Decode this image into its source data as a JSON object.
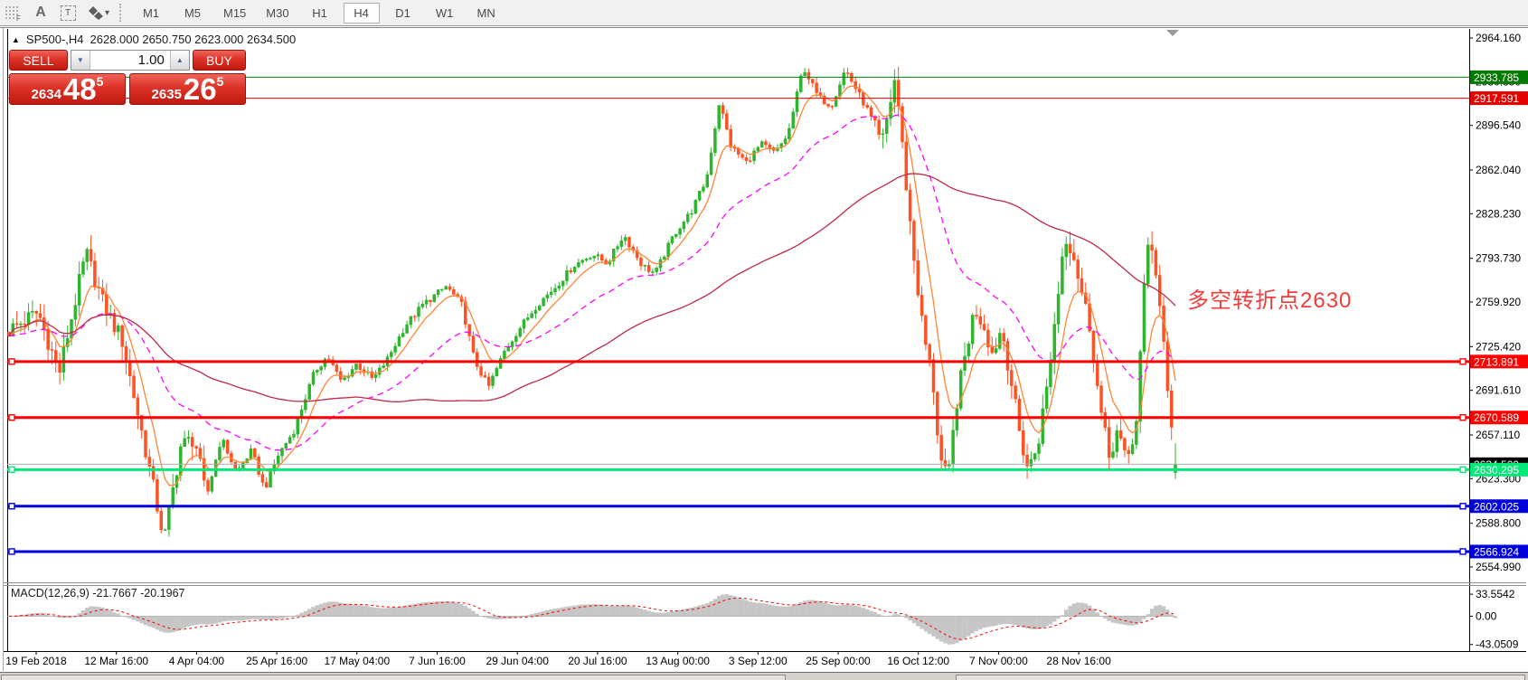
{
  "icons": {
    "collapse": "▲",
    "spin_down": "▼",
    "spin_up": "▲",
    "dropdown_caret": "▾",
    "text_label": "A",
    "text_box": "T",
    "fib_f": "F"
  },
  "toolbar": {
    "timeframes": [
      "M1",
      "M5",
      "M15",
      "M30",
      "H1",
      "H4",
      "D1",
      "W1",
      "MN"
    ],
    "active_timeframe": "H4"
  },
  "chart_header": {
    "symbol": "SP500-,H4",
    "ohlc": "2628.000 2650.750 2623.000 2634.500"
  },
  "trade_panel": {
    "sell_label": "SELL",
    "buy_label": "BUY",
    "volume": "1.00",
    "sell_price": {
      "prefix": "2634",
      "big": "48",
      "sup": "5"
    },
    "buy_price": {
      "prefix": "2635",
      "big": "26",
      "sup": "5"
    }
  },
  "annotation": {
    "text": "多空转折点2630",
    "color": "#f43b3b"
  },
  "macd_label": {
    "name": "MACD(12,26,9)",
    "values": "-21.7667 -20.1967"
  },
  "chart_data": {
    "type": "candlestick",
    "symbol": "SP500-,H4",
    "period": "H4",
    "current_bar": {
      "open": 2628.0,
      "high": 2650.75,
      "low": 2623.0,
      "close": 2634.5
    },
    "axis_range": [
      2554.99,
      2964.16
    ],
    "y_ticks": [
      2964.16,
      2930.35,
      2896.54,
      2862.04,
      2828.23,
      2793.73,
      2759.92,
      2725.42,
      2691.61,
      2657.11,
      2623.3,
      2588.8,
      2554.99
    ],
    "x_labels": [
      "19 Feb 2018",
      "12 Mar 16:00",
      "4 Apr 04:00",
      "25 Apr 16:00",
      "17 May 04:00",
      "7 Jun 16:00",
      "29 Jun 04:00",
      "20 Jul 16:00",
      "13 Aug 00:00",
      "3 Sep 12:00",
      "25 Sep 00:00",
      "16 Oct 12:00",
      "7 Nov 00:00",
      "28 Nov 16:00"
    ],
    "hlines": [
      {
        "price": 2933.785,
        "color": "#007a00",
        "width": 1,
        "handles": false
      },
      {
        "price": 2917.591,
        "color": "#e60000",
        "width": 1,
        "handles": false
      },
      {
        "price": 2713.891,
        "color": "#ff0000",
        "width": 3,
        "handles": true
      },
      {
        "price": 2670.589,
        "color": "#ff0000",
        "width": 3,
        "handles": true
      },
      {
        "price": 2602.025,
        "color": "#0000dd",
        "width": 3,
        "handles": true
      },
      {
        "price": 2566.924,
        "color": "#0000dd",
        "width": 3,
        "handles": true
      }
    ],
    "turn_line": {
      "price": 2630.295,
      "color": "#00e878",
      "width": 3
    },
    "bid_line": {
      "price": 2634.5,
      "line_color": "#ababab",
      "label_bg": "#000000"
    },
    "up_color": "#2db52d",
    "down_color": "#ff5122",
    "ma_lines": [
      {
        "name": "fast",
        "type": "ema",
        "period": 8,
        "color": "#ff8533",
        "dash": ""
      },
      {
        "name": "medium",
        "type": "ema",
        "period": 34,
        "color": "#ff00ff",
        "dash": "7 5"
      },
      {
        "name": "slow",
        "type": "sma",
        "period": 90,
        "color": "#bf2847",
        "dash": ""
      }
    ],
    "bars": 300,
    "price_path_anchors": [
      [
        0.0,
        2738
      ],
      [
        0.025,
        2752
      ],
      [
        0.043,
        2705
      ],
      [
        0.066,
        2798
      ],
      [
        0.081,
        2758
      ],
      [
        0.097,
        2730
      ],
      [
        0.116,
        2650
      ],
      [
        0.133,
        2576
      ],
      [
        0.147,
        2648
      ],
      [
        0.159,
        2655
      ],
      [
        0.169,
        2608
      ],
      [
        0.182,
        2655
      ],
      [
        0.195,
        2628
      ],
      [
        0.208,
        2645
      ],
      [
        0.219,
        2615
      ],
      [
        0.231,
        2642
      ],
      [
        0.244,
        2660
      ],
      [
        0.262,
        2706
      ],
      [
        0.273,
        2718
      ],
      [
        0.285,
        2698
      ],
      [
        0.298,
        2712
      ],
      [
        0.312,
        2700
      ],
      [
        0.324,
        2715
      ],
      [
        0.34,
        2742
      ],
      [
        0.355,
        2758
      ],
      [
        0.375,
        2772
      ],
      [
        0.388,
        2758
      ],
      [
        0.399,
        2715
      ],
      [
        0.411,
        2694
      ],
      [
        0.425,
        2722
      ],
      [
        0.438,
        2740
      ],
      [
        0.453,
        2758
      ],
      [
        0.469,
        2772
      ],
      [
        0.484,
        2788
      ],
      [
        0.5,
        2797
      ],
      [
        0.513,
        2790
      ],
      [
        0.527,
        2812
      ],
      [
        0.543,
        2788
      ],
      [
        0.554,
        2782
      ],
      [
        0.57,
        2812
      ],
      [
        0.585,
        2830
      ],
      [
        0.598,
        2855
      ],
      [
        0.609,
        2915
      ],
      [
        0.619,
        2880
      ],
      [
        0.632,
        2868
      ],
      [
        0.645,
        2882
      ],
      [
        0.657,
        2875
      ],
      [
        0.668,
        2890
      ],
      [
        0.681,
        2942
      ],
      [
        0.694,
        2918
      ],
      [
        0.705,
        2912
      ],
      [
        0.717,
        2940
      ],
      [
        0.729,
        2920
      ],
      [
        0.738,
        2905
      ],
      [
        0.748,
        2880
      ],
      [
        0.76,
        2935
      ],
      [
        0.767,
        2870
      ],
      [
        0.775,
        2800
      ],
      [
        0.784,
        2735
      ],
      [
        0.792,
        2700
      ],
      [
        0.798,
        2640
      ],
      [
        0.805,
        2620
      ],
      [
        0.812,
        2680
      ],
      [
        0.82,
        2720
      ],
      [
        0.828,
        2755
      ],
      [
        0.836,
        2742
      ],
      [
        0.843,
        2720
      ],
      [
        0.851,
        2740
      ],
      [
        0.859,
        2700
      ],
      [
        0.867,
        2655
      ],
      [
        0.874,
        2630
      ],
      [
        0.882,
        2650
      ],
      [
        0.89,
        2695
      ],
      [
        0.898,
        2755
      ],
      [
        0.905,
        2812
      ],
      [
        0.912,
        2800
      ],
      [
        0.919,
        2770
      ],
      [
        0.927,
        2740
      ],
      [
        0.935,
        2680
      ],
      [
        0.943,
        2640
      ],
      [
        0.95,
        2660
      ],
      [
        0.958,
        2635
      ],
      [
        0.966,
        2662
      ],
      [
        0.974,
        2780
      ],
      [
        0.978,
        2815
      ],
      [
        0.984,
        2780
      ],
      [
        0.991,
        2720
      ],
      [
        0.996,
        2665
      ],
      [
        1.0,
        2634.5
      ]
    ],
    "macd": {
      "label": "MACD(12,26,9)",
      "current_values": [
        -21.7667,
        -20.1967
      ],
      "ticks": [
        "33.5542",
        "0.00",
        "-43.0509"
      ],
      "tick_values": [
        33.5542,
        0.0,
        -43.0509
      ],
      "histogram_color": "#c6c6c6",
      "signal_color": "#ff0000"
    }
  }
}
